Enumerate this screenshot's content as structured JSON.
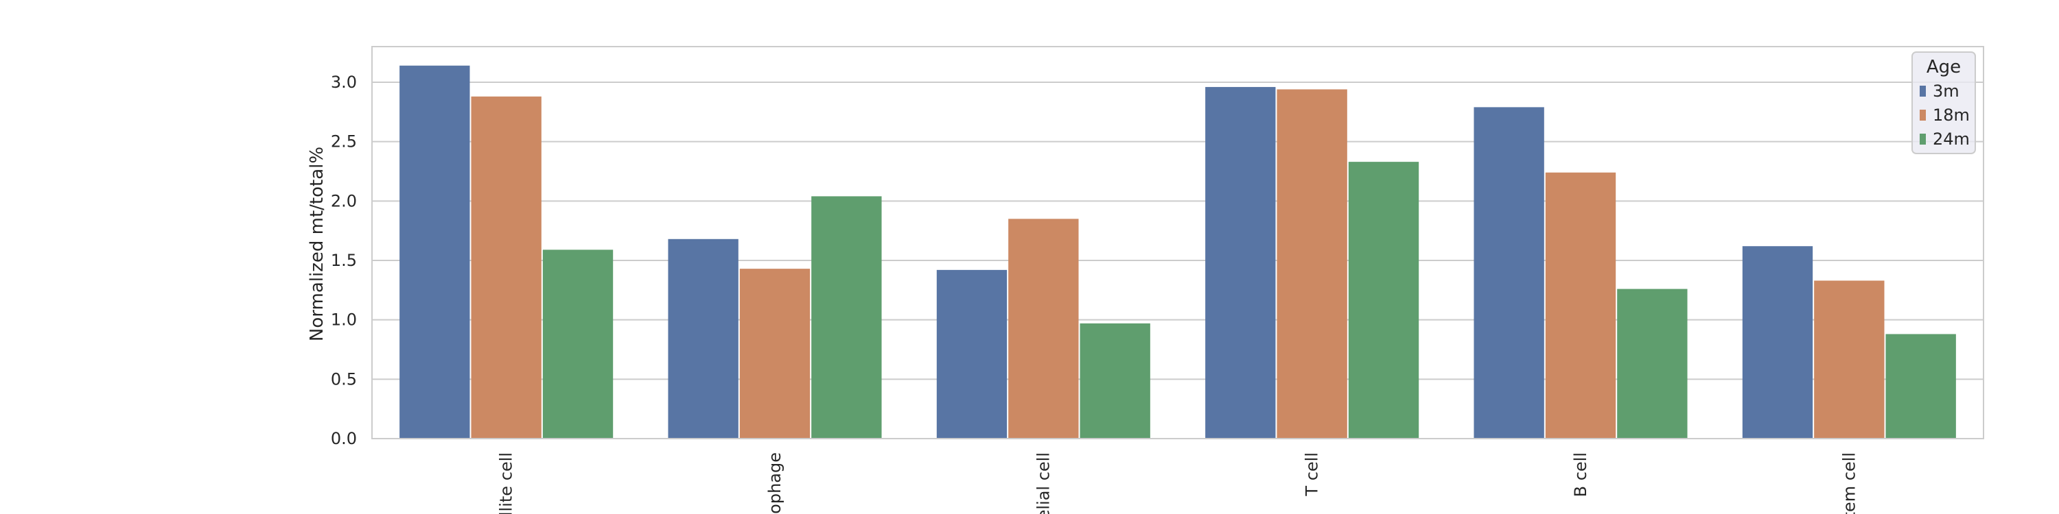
{
  "chart_data": {
    "type": "bar",
    "categories": [
      "Muscle satellite cell",
      "Macrophage",
      "Endothelial cell",
      "T cell",
      "B cell",
      "Mesenchymal stem cell"
    ],
    "category_labels_visible": [
      "llite cell",
      "ophage",
      "elial cell",
      "T cell",
      "B cell",
      "tem cell"
    ],
    "series": [
      {
        "name": "3m",
        "color": "#5875a4",
        "values": [
          3.14,
          1.68,
          1.42,
          2.96,
          2.79,
          1.62
        ]
      },
      {
        "name": "18m",
        "color": "#cc8963",
        "values": [
          2.88,
          1.43,
          1.85,
          2.94,
          2.24,
          1.33
        ]
      },
      {
        "name": "24m",
        "color": "#5f9e6e",
        "values": [
          1.59,
          2.04,
          0.97,
          2.33,
          1.26,
          0.88
        ]
      }
    ],
    "title": "",
    "xlabel": "",
    "ylabel": "Normalized mt/total%",
    "ylim": [
      0,
      3.3
    ],
    "yticks": [
      "0.0",
      "0.5",
      "1.0",
      "1.5",
      "2.0",
      "2.5",
      "3.0"
    ],
    "grid": true,
    "legend": {
      "title": "Age",
      "placement": "top-right",
      "entries": [
        "3m",
        "18m",
        "24m"
      ]
    }
  }
}
